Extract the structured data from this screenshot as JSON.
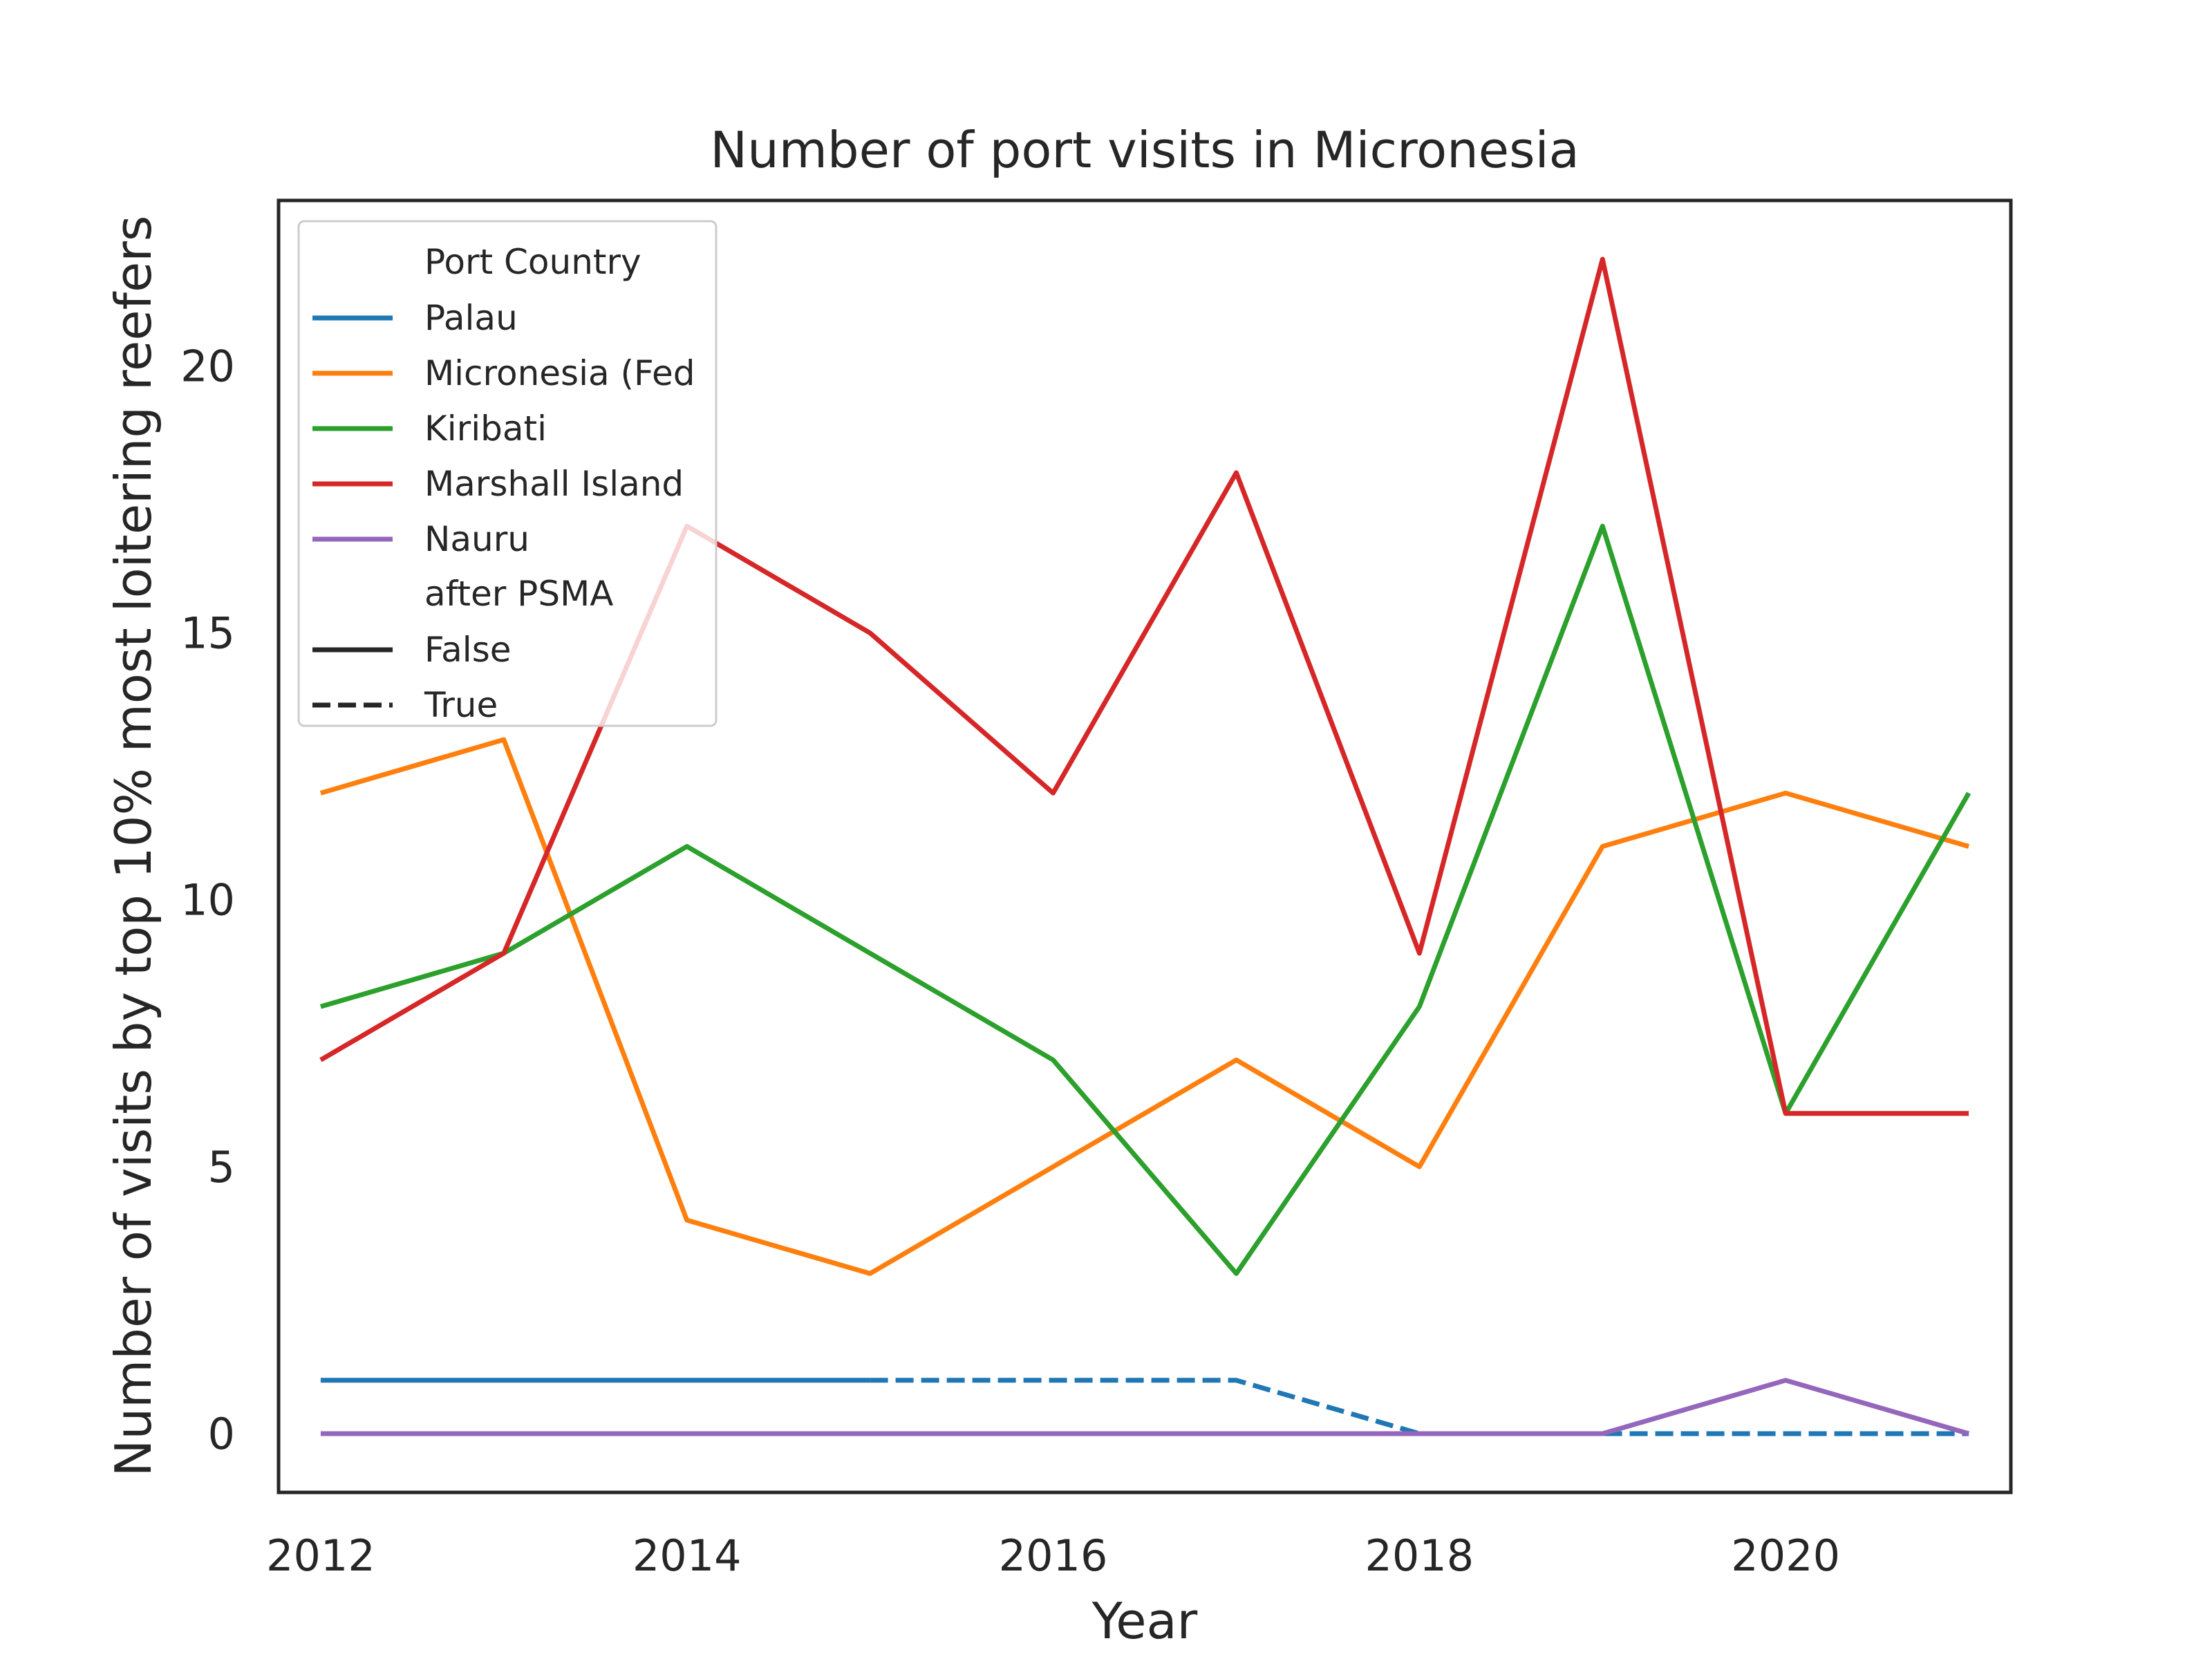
{
  "chart_data": {
    "type": "line",
    "title": "Number of port visits in Micronesia",
    "xlabel": "Year",
    "ylabel": "Number of visits by top 10% most loitering reefers",
    "xlim": [
      2011.77,
      2021.23
    ],
    "ylim": [
      -1.1,
      23.1
    ],
    "xticks": [
      2012,
      2014,
      2016,
      2018,
      2020
    ],
    "yticks": [
      0,
      5,
      10,
      15,
      20
    ],
    "grid": false,
    "legend_placement": "upper-left",
    "legend": {
      "hue_title": "Port Country",
      "style_title": "after PSMA",
      "hue_entries": [
        {
          "label": "Palau",
          "color": "#1f77b4"
        },
        {
          "label": "Micronesia (Fed",
          "color": "#ff7f0e"
        },
        {
          "label": "Kiribati",
          "color": "#2ca02c"
        },
        {
          "label": "Marshall Island",
          "color": "#d62728"
        },
        {
          "label": "Nauru",
          "color": "#9467bd"
        }
      ],
      "style_entries": [
        {
          "label": "False",
          "dash": "solid"
        },
        {
          "label": "True",
          "dash": "dashed"
        }
      ]
    },
    "series": [
      {
        "country": "Palau",
        "after_psma": "False",
        "color": "#1f77b4",
        "dash": "solid",
        "x": [
          2012,
          2013,
          2014,
          2015
        ],
        "y": [
          1,
          1,
          1,
          1
        ]
      },
      {
        "country": "Palau",
        "after_psma": "True",
        "color": "#1f77b4",
        "dash": "dashed",
        "x": [
          2015,
          2016,
          2017,
          2018,
          2019,
          2020,
          2021
        ],
        "y": [
          1,
          1,
          1,
          0,
          0,
          0,
          0
        ]
      },
      {
        "country": "Micronesia (Fed",
        "after_psma": "False",
        "color": "#ff7f0e",
        "dash": "solid",
        "x": [
          2012,
          2013,
          2014,
          2015,
          2016,
          2017,
          2018,
          2019,
          2020,
          2021
        ],
        "y": [
          12,
          13,
          4,
          3,
          5,
          7,
          5,
          11,
          12,
          11
        ]
      },
      {
        "country": "Kiribati",
        "after_psma": "False",
        "color": "#2ca02c",
        "dash": "solid",
        "x": [
          2012,
          2013,
          2014,
          2015,
          2016,
          2017,
          2018,
          2019,
          2020,
          2021
        ],
        "y": [
          8,
          9,
          11,
          9,
          7,
          3,
          8,
          17,
          6,
          12
        ]
      },
      {
        "country": "Marshall Island",
        "after_psma": "False",
        "color": "#d62728",
        "dash": "solid",
        "x": [
          2012,
          2013,
          2014,
          2015,
          2016,
          2017,
          2018,
          2019,
          2020,
          2021
        ],
        "y": [
          7,
          9,
          17,
          15,
          12,
          18,
          9,
          22,
          6,
          6
        ]
      },
      {
        "country": "Nauru",
        "after_psma": "False",
        "color": "#9467bd",
        "dash": "solid",
        "x": [
          2012,
          2013,
          2014,
          2015,
          2016,
          2017,
          2018,
          2019,
          2020,
          2021
        ],
        "y": [
          0,
          0,
          0,
          0,
          0,
          0,
          0,
          0,
          1,
          0
        ]
      }
    ]
  }
}
